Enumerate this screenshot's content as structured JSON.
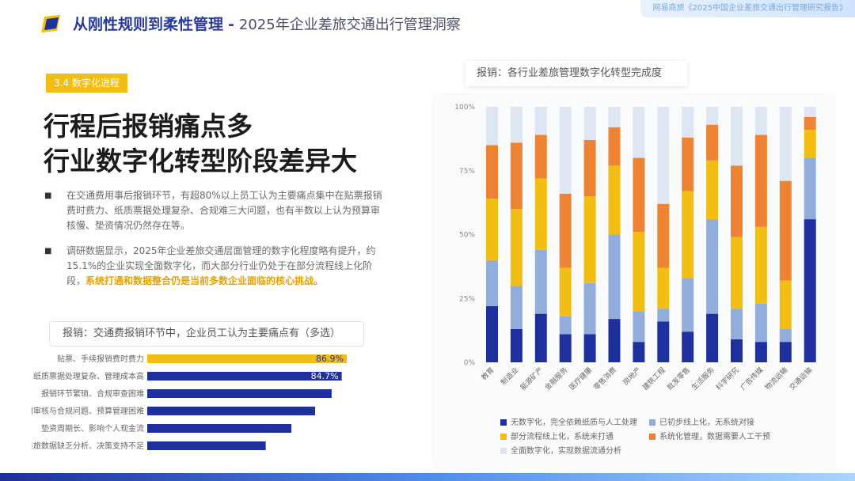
{
  "colors": {
    "navy": "#1e2f9e",
    "light_blue": "#92acdb",
    "yellow": "#f3be13",
    "orange": "#ee8433",
    "pale": "#dfe6f3",
    "left_bar_highlight": "#f3be13",
    "left_bar_default": "#1e2f9e"
  },
  "header": {
    "title_bold": "从刚性规则到柔性管理",
    "separator": "-",
    "title_sub": "2025年企业差旅交通出行管理洞察",
    "top_tag": "网易商旅《2025中国企业差旅交通出行管理研究报告》"
  },
  "section_tag": "3.4  数字化进程",
  "headline": {
    "line1": "行程后报销痛点多",
    "line2": "行业数字化转型阶段差异大"
  },
  "paragraphs": {
    "p1": "在交通费用事后报销环节，有超80%以上员工认为主要痛点集中在贴票报销费时费力、纸质票据处理复杂、合规难三大问题，也有半数以上认为预算审核慢、垫资情况仍然存在等。",
    "p2_plain": "调研数据显示，2025年企业差旅交通层面管理的数字化程度略有提升，约15.1%的企业实现全面数字化，而大部分行业仍处于在部分流程线上化阶段，",
    "p2_highlight": "系统打通和数据整合仍是当前多数企业面临的核心挑战。"
  },
  "chart_data": [
    {
      "type": "bar",
      "orientation": "horizontal",
      "title": "报销：交通费报销环节中，企业员工认为主要痛点有（多选）",
      "categories": [
        "贴票、手续报销费时费力",
        "纸质票据处理复杂、管理成本高",
        "报销环节繁琐、合规审查困难",
        "费用审核与合规问题、预算管理困难",
        "垫资周期长、影响个人现金流",
        "差旅数据缺乏分析、决策支持不足"
      ],
      "values": [
        86.9,
        84.7,
        80.3,
        73.1,
        62.8,
        51.6
      ],
      "value_labels": [
        "86.9%",
        "84.7%",
        "",
        "",
        "",
        ""
      ],
      "unit": "%",
      "xlim": [
        0,
        100
      ]
    },
    {
      "type": "bar",
      "stacked": true,
      "percent": true,
      "title": "报销：各行业差旅管理数字化转型完成度",
      "categories": [
        "教育",
        "制造业",
        "能源矿产",
        "金融服务",
        "医疗健康",
        "零售消费",
        "房地产",
        "建筑工程",
        "批发零售",
        "生活服务",
        "科学研究",
        "广告传媒",
        "物流运输",
        "交通运输"
      ],
      "ylim": [
        0,
        100
      ],
      "y_ticks": [
        "0%",
        "25%",
        "50%",
        "75%",
        "100%"
      ],
      "series": [
        {
          "name": "无数字化，完全依赖纸质与人工处理",
          "values": [
            22,
            13,
            19,
            11,
            11,
            17,
            8,
            16,
            12,
            19,
            9,
            8,
            8,
            56
          ]
        },
        {
          "name": "已初步线上化，无系统对接",
          "values": [
            18,
            17,
            25,
            7,
            20,
            33,
            12,
            5,
            21,
            37,
            12,
            15,
            5,
            24
          ]
        },
        {
          "name": "部分流程线上化，系统未打通",
          "values": [
            24,
            30,
            28,
            19,
            34,
            27,
            31,
            16,
            34,
            23,
            28,
            30,
            19,
            11
          ]
        },
        {
          "name": "系统化管理，数据需要人工干预",
          "values": [
            21,
            26,
            17,
            29,
            22,
            15,
            29,
            25,
            21,
            14,
            28,
            36,
            39,
            5
          ]
        },
        {
          "name": "全面数字化，实现数据流通分析",
          "values": [
            15,
            14,
            11,
            34,
            13,
            8,
            20,
            38,
            12,
            7,
            23,
            11,
            29,
            4
          ]
        }
      ]
    }
  ]
}
